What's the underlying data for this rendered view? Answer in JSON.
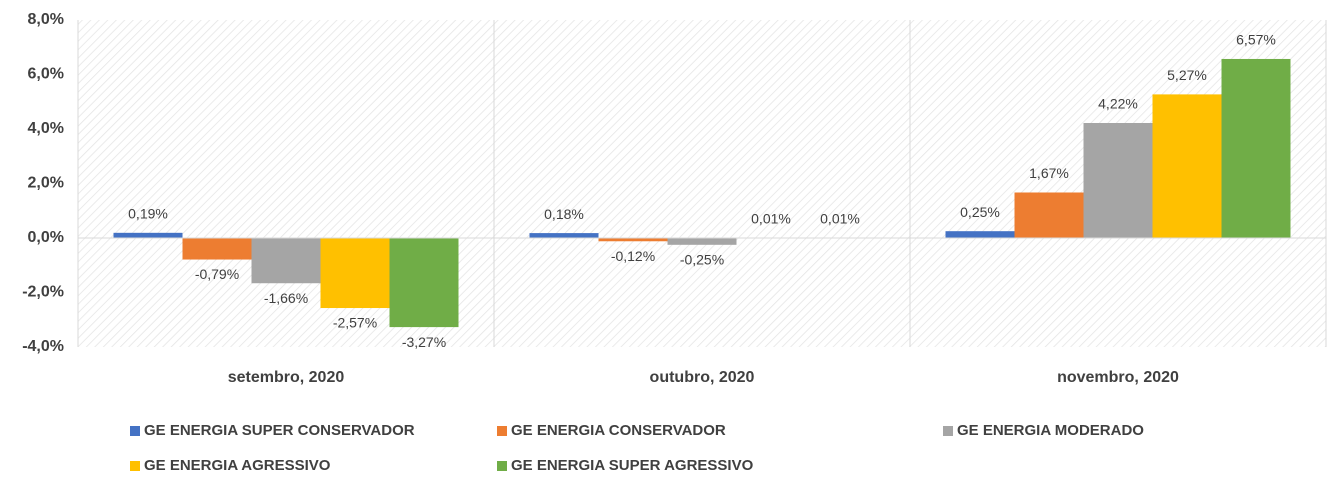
{
  "chart_data": {
    "type": "bar",
    "categories": [
      "setembro, 2020",
      "outubro, 2020",
      "novembro, 2020"
    ],
    "series": [
      {
        "name": "GE ENERGIA SUPER CONSERVADOR",
        "color": "#4472c4",
        "values": [
          0.19,
          0.18,
          0.25
        ],
        "value_labels": [
          "0,19%",
          "0,18%",
          "0,25%"
        ]
      },
      {
        "name": "GE ENERGIA CONSERVADOR",
        "color": "#ed7d31",
        "values": [
          -0.79,
          -0.12,
          1.67
        ],
        "value_labels": [
          "-0,79%",
          "-0,12%",
          "1,67%"
        ]
      },
      {
        "name": "GE ENERGIA MODERADO",
        "color": "#a5a5a5",
        "values": [
          -1.66,
          -0.25,
          4.22
        ],
        "value_labels": [
          "-1,66%",
          "-0,25%",
          "4,22%"
        ]
      },
      {
        "name": "GE ENERGIA AGRESSIVO",
        "color": "#ffc000",
        "values": [
          -2.57,
          0.01,
          5.27
        ],
        "value_labels": [
          "-2,57%",
          "0,01%",
          "5,27%"
        ]
      },
      {
        "name": "GE ENERGIA SUPER AGRESSIVO",
        "color": "#70ad47",
        "values": [
          -3.27,
          0.01,
          6.57
        ],
        "value_labels": [
          "-3,27%",
          "0,01%",
          "6,57%"
        ]
      }
    ],
    "ylim": [
      -4,
      8
    ],
    "yticks": [
      {
        "value": -4,
        "label": "-4,0%"
      },
      {
        "value": -2,
        "label": "-2,0%"
      },
      {
        "value": 0,
        "label": "0,0%"
      },
      {
        "value": 2,
        "label": "2,0%"
      },
      {
        "value": 4,
        "label": "4,0%"
      },
      {
        "value": 6,
        "label": "6,0%"
      },
      {
        "value": 8,
        "label": "8,0%"
      }
    ],
    "legend": "bottom"
  }
}
